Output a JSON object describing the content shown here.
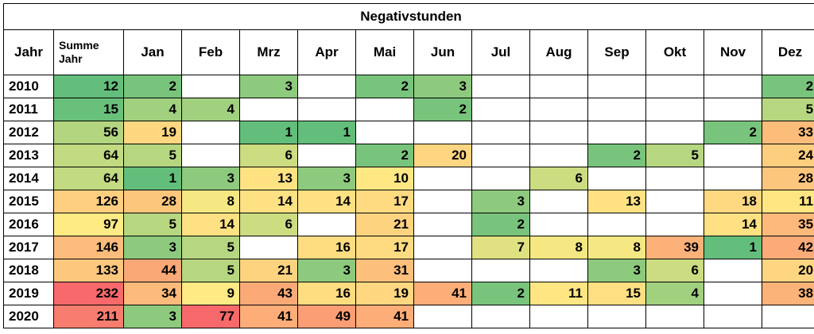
{
  "title": "Negativstunden",
  "header": [
    "Jahr",
    "Summe\nJahr",
    "Jan",
    "Feb",
    "Mrz",
    "Apr",
    "Mai",
    "Jun",
    "Jul",
    "Aug",
    "Sep",
    "Okt",
    "Nov",
    "Dez"
  ],
  "rows": [
    {
      "year": "2010",
      "cells": [
        "12",
        "2",
        "",
        "3",
        "",
        "2",
        "3",
        "",
        "",
        "",
        "",
        "",
        "2"
      ]
    },
    {
      "year": "2011",
      "cells": [
        "15",
        "4",
        "4",
        "",
        "",
        "",
        "2",
        "",
        "",
        "",
        "",
        "",
        "5"
      ]
    },
    {
      "year": "2012",
      "cells": [
        "56",
        "19",
        "",
        "1",
        "1",
        "",
        "",
        "",
        "",
        "",
        "",
        "2",
        "33"
      ]
    },
    {
      "year": "2013",
      "cells": [
        "64",
        "5",
        "",
        "6",
        "",
        "2",
        "20",
        "",
        "",
        "2",
        "5",
        "",
        "24"
      ]
    },
    {
      "year": "2014",
      "cells": [
        "64",
        "1",
        "3",
        "13",
        "3",
        "10",
        "",
        "",
        "6",
        "",
        "",
        "",
        "28"
      ]
    },
    {
      "year": "2015",
      "cells": [
        "126",
        "28",
        "8",
        "14",
        "14",
        "17",
        "",
        "3",
        "",
        "13",
        "",
        "18",
        "11"
      ]
    },
    {
      "year": "2016",
      "cells": [
        "97",
        "5",
        "14",
        "6",
        "",
        "21",
        "",
        "2",
        "",
        "",
        "",
        "14",
        "35"
      ]
    },
    {
      "year": "2017",
      "cells": [
        "146",
        "3",
        "5",
        "",
        "16",
        "17",
        "",
        "7",
        "8",
        "8",
        "39",
        "1",
        "42"
      ]
    },
    {
      "year": "2018",
      "cells": [
        "133",
        "44",
        "5",
        "21",
        "3",
        "31",
        "",
        "",
        "",
        "3",
        "6",
        "",
        "20"
      ]
    },
    {
      "year": "2019",
      "cells": [
        "232",
        "34",
        "9",
        "43",
        "16",
        "19",
        "41",
        "2",
        "11",
        "15",
        "4",
        "",
        "38"
      ]
    },
    {
      "year": "2020",
      "cells": [
        "211",
        "3",
        "77",
        "41",
        "49",
        "41",
        "",
        "",
        "",
        "",
        "",
        "",
        ""
      ]
    }
  ],
  "color_scale": {
    "low": "#63be7b",
    "mid": "#ffeb84",
    "high": "#f8696b"
  },
  "empty_color": "#ffffff"
}
